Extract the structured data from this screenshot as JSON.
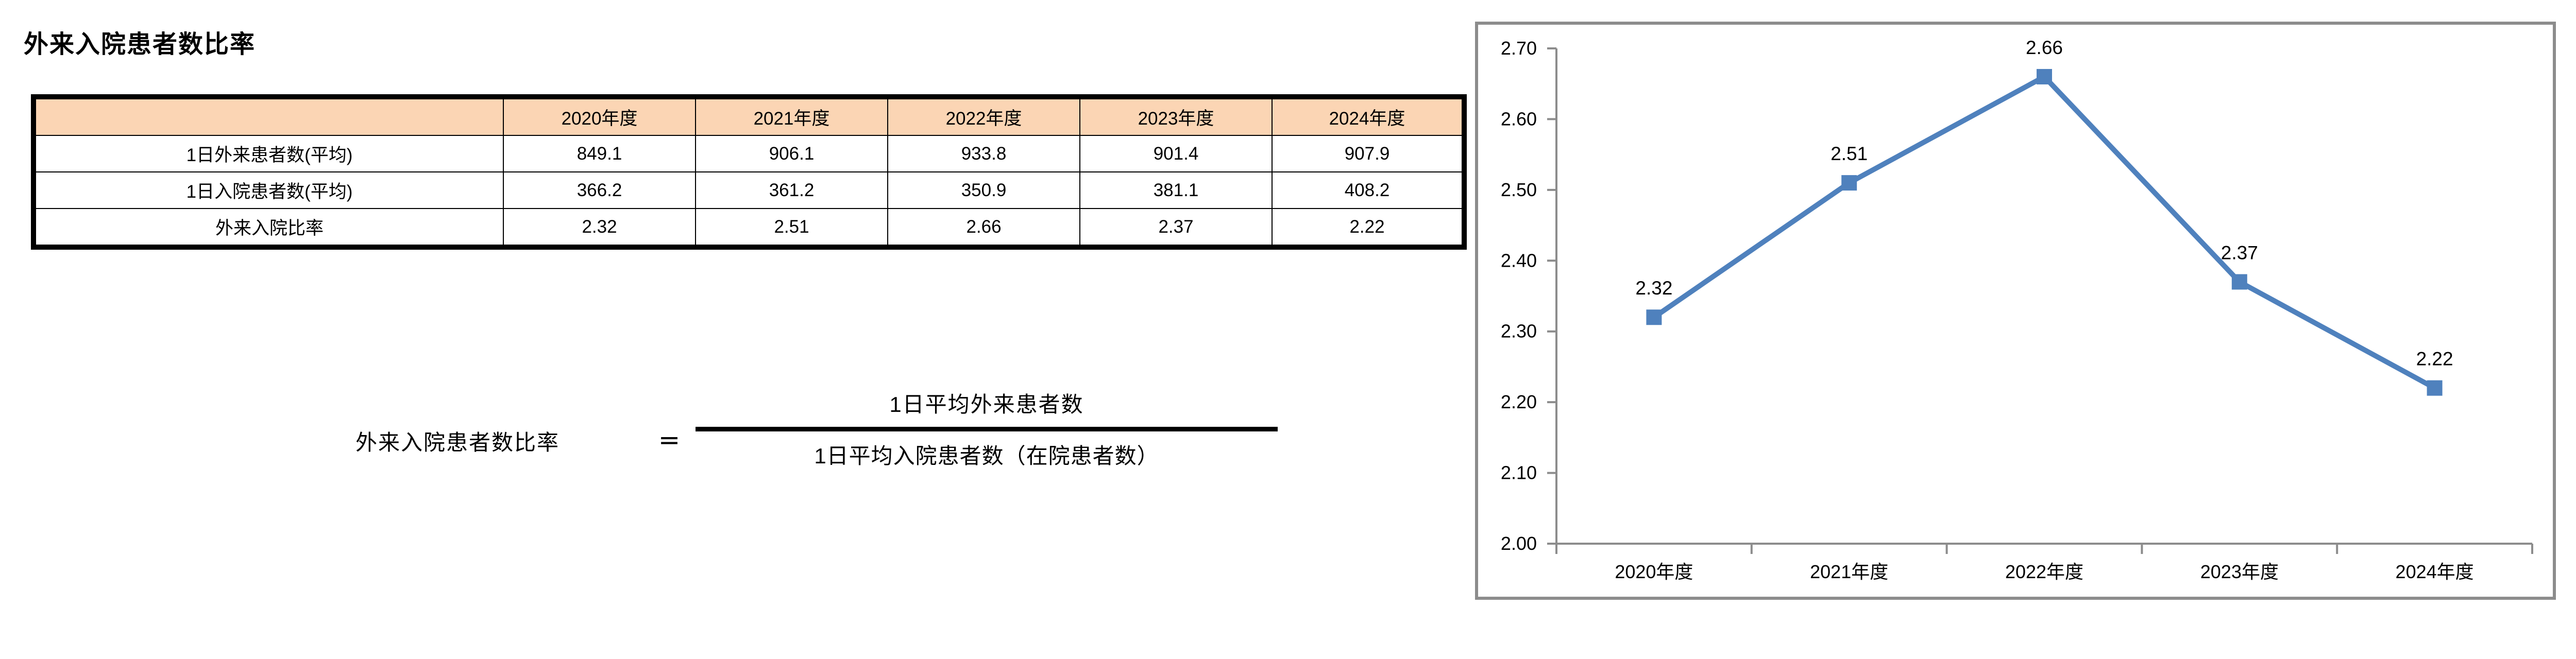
{
  "page": {
    "title": "外来入院患者数比率"
  },
  "table": {
    "corner_label": "",
    "header_fill": "#FBD5B4",
    "columns": [
      "2020年度",
      "2021年度",
      "2022年度",
      "2023年度",
      "2024年度"
    ],
    "rows": [
      {
        "label": "1日外来患者数(平均)",
        "values": [
          "849.1",
          "906.1",
          "933.8",
          "901.4",
          "907.9"
        ]
      },
      {
        "label": "1日入院患者数(平均)",
        "values": [
          "366.2",
          "361.2",
          "350.9",
          "381.1",
          "408.2"
        ]
      },
      {
        "label": "外来入院比率",
        "values": [
          "2.32",
          "2.51",
          "2.66",
          "2.37",
          "2.22"
        ]
      }
    ]
  },
  "formula": {
    "lhs": "外来入院患者数比率",
    "equals": "＝",
    "numerator": "1日平均外来患者数",
    "denominator": "1日平均入院患者数（在院患者数）"
  },
  "chart_data": {
    "type": "line",
    "title": "",
    "categories": [
      "2020年度",
      "2021年度",
      "2022年度",
      "2023年度",
      "2024年度"
    ],
    "series": [
      {
        "name": "外来入院比率",
        "values": [
          2.32,
          2.51,
          2.66,
          2.37,
          2.22
        ]
      }
    ],
    "data_labels": [
      "2.32",
      "2.51",
      "2.66",
      "2.37",
      "2.22"
    ],
    "xlabel": "",
    "ylabel": "",
    "ylim": [
      2.0,
      2.7
    ],
    "ytick_step": 0.1,
    "ytick_labels": [
      "2.00",
      "2.10",
      "2.20",
      "2.30",
      "2.40",
      "2.50",
      "2.60",
      "2.70"
    ],
    "grid": false,
    "legend_position": "none",
    "line_color": "#4F81BD",
    "marker": "square",
    "axis_color": "#8c8c8c",
    "label_color": "#000000"
  }
}
